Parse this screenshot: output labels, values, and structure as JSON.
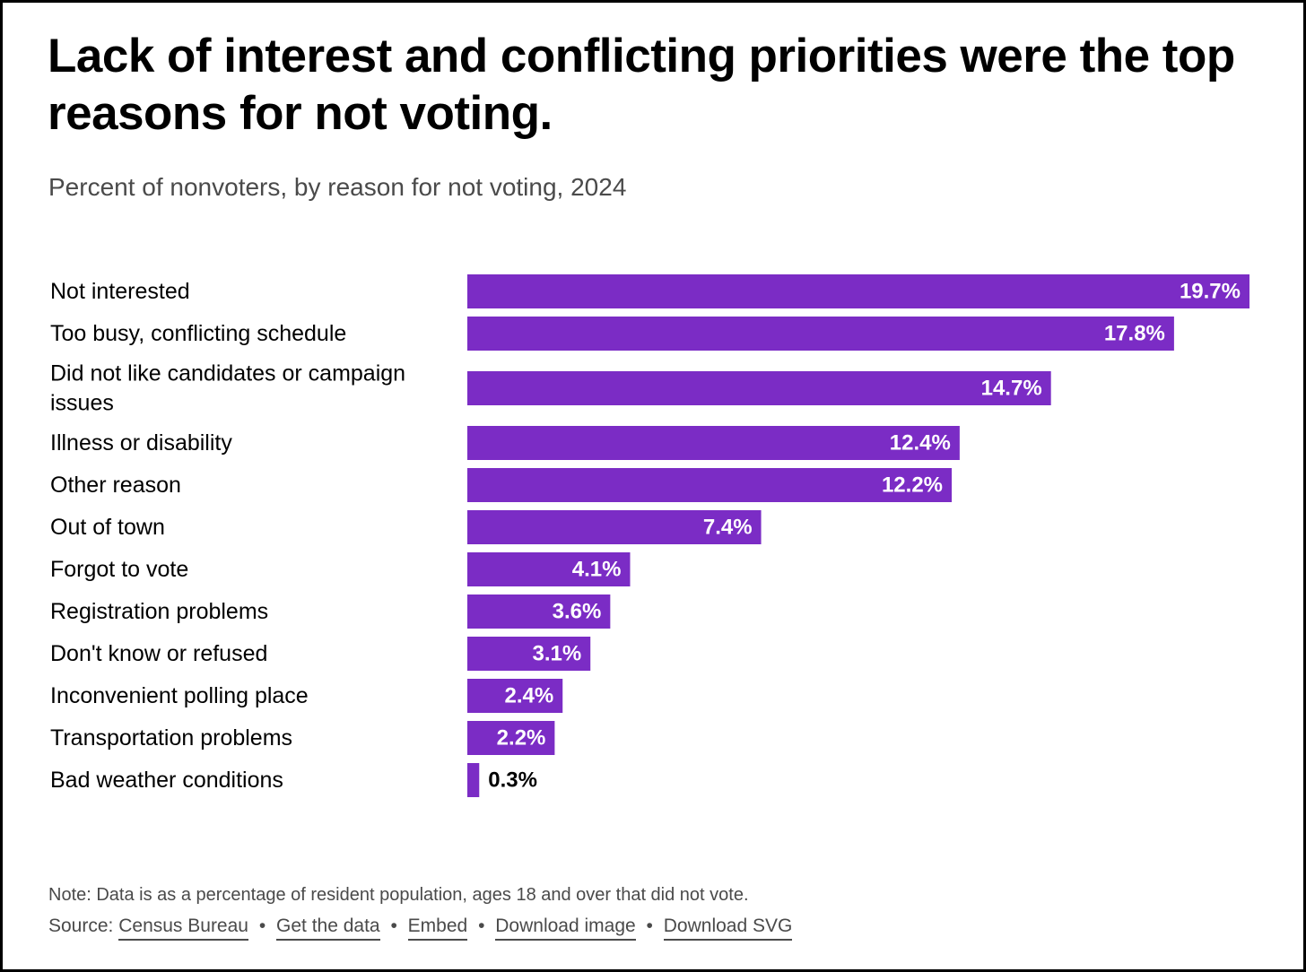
{
  "title": "Lack of interest and conflicting priorities were the top reasons for not voting.",
  "subtitle": "Percent of nonvoters, by reason for not voting, 2024",
  "colors": {
    "bar": "#7b2cc5",
    "label_inside": "#ffffff",
    "label_outside": "#000000",
    "text": "#000000",
    "muted": "#4a4a4a"
  },
  "chart_data": {
    "type": "bar",
    "orientation": "horizontal",
    "title": "Lack of interest and conflicting priorities were the top reasons for not voting.",
    "subtitle": "Percent of nonvoters, by reason for not voting, 2024",
    "xlabel": "",
    "ylabel": "",
    "xlim": [
      0,
      20
    ],
    "grid": false,
    "categories": [
      "Not interested",
      "Too busy, conflicting schedule",
      "Did not like candidates or campaign issues",
      "Illness or disability",
      "Other reason",
      "Out of town",
      "Forgot to vote",
      "Registration problems",
      "Don't know or refused",
      "Inconvenient polling place",
      "Transportation problems",
      "Bad weather conditions"
    ],
    "values": [
      19.7,
      17.8,
      14.7,
      12.4,
      12.2,
      7.4,
      4.1,
      3.6,
      3.1,
      2.4,
      2.2,
      0.3
    ],
    "data_labels": [
      "19.7%",
      "17.8%",
      "14.7%",
      "12.4%",
      "12.2%",
      "7.4%",
      "4.1%",
      "3.6%",
      "3.1%",
      "2.4%",
      "2.2%",
      "0.3%"
    ]
  },
  "footer": {
    "note": "Note: Data is as a percentage of resident population, ages 18 and over that did not vote.",
    "source_prefix": "Source:",
    "links": [
      "Census Bureau",
      "Get the data",
      "Embed",
      "Download image",
      "Download SVG"
    ],
    "separator": "•"
  }
}
